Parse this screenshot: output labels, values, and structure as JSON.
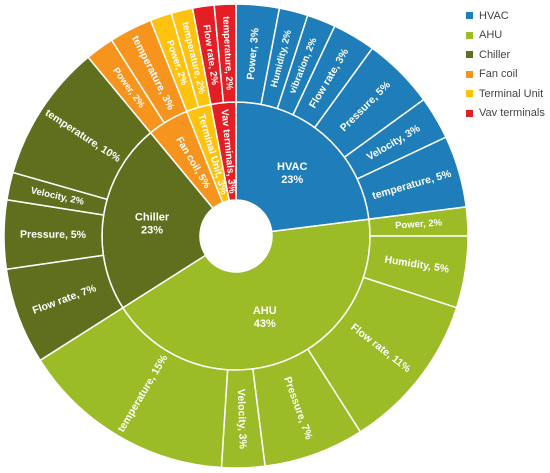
{
  "chart_data": {
    "type": "sunburst",
    "title": "",
    "legend_position": "right",
    "categories": [
      {
        "name": "HVAC",
        "label": "HVAC",
        "percent": "23%",
        "value": 23,
        "color": "#1F7DB9",
        "children": [
          {
            "label": "Power",
            "percent": "3%",
            "value": 3
          },
          {
            "label": "Humidity",
            "percent": "2%",
            "value": 2
          },
          {
            "label": "vibration",
            "percent": "2%",
            "value": 2
          },
          {
            "label": "Flow rate",
            "percent": "3%",
            "value": 3
          },
          {
            "label": "Pressure",
            "percent": "5%",
            "value": 5
          },
          {
            "label": "Velocity",
            "percent": "3%",
            "value": 3
          },
          {
            "label": "temperature",
            "percent": "5%",
            "value": 5
          }
        ]
      },
      {
        "name": "AHU",
        "label": "AHU",
        "percent": "43%",
        "value": 43,
        "color": "#9BBB27",
        "children": [
          {
            "label": "Power",
            "percent": "2%",
            "value": 2
          },
          {
            "label": "Humidity",
            "percent": "5%",
            "value": 5
          },
          {
            "label": "Flow rate",
            "percent": "11%",
            "value": 11
          },
          {
            "label": "Pressure",
            "percent": "7%",
            "value": 7
          },
          {
            "label": "Velocity",
            "percent": "3%",
            "value": 3
          },
          {
            "label": "temperature",
            "percent": "15%",
            "value": 15
          }
        ]
      },
      {
        "name": "Chiller",
        "label": "Chiller",
        "percent": "23%",
        "value": 23,
        "color": "#5F6F1E",
        "children": [
          {
            "label": "Flow rate",
            "percent": "7%",
            "value": 7
          },
          {
            "label": "Pressure",
            "percent": "5%",
            "value": 5
          },
          {
            "label": "Velocity",
            "percent": "2%",
            "value": 2
          },
          {
            "label": "temperature",
            "percent": "10%",
            "value": 10
          }
        ]
      },
      {
        "name": "Fan coil",
        "label": "Fan coil",
        "percent": "5%",
        "value": 5,
        "color": "#F7941D",
        "children": [
          {
            "label": "Power",
            "percent": "2%",
            "value": 2
          },
          {
            "label": "temperature",
            "percent": "3%",
            "value": 3
          }
        ]
      },
      {
        "name": "Terminal Unit",
        "label": "Terminal Unit",
        "percent": "3%",
        "value": 3,
        "color": "#FFC20E",
        "children": [
          {
            "label": "Power",
            "percent": "2%",
            "value": 2
          },
          {
            "label": "temperature",
            "percent": "2%",
            "value": 2
          }
        ]
      },
      {
        "name": "Vav terminals",
        "label": "Vav terminals",
        "percent": "3%",
        "value": 3,
        "color": "#E31E24",
        "children": [
          {
            "label": "Flow rate",
            "percent": "2%",
            "value": 2
          },
          {
            "label": "temperature",
            "percent": "2%",
            "value": 2
          }
        ]
      }
    ]
  }
}
